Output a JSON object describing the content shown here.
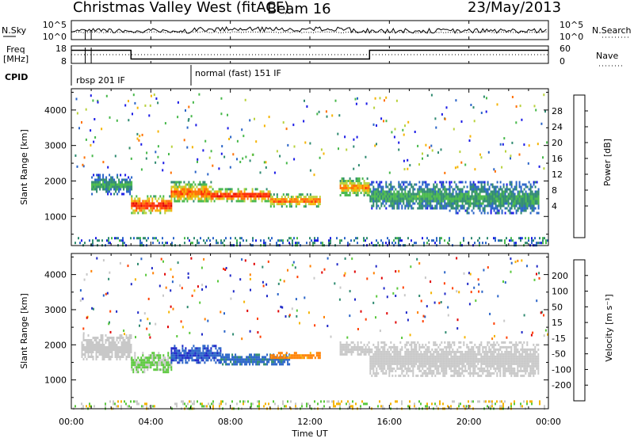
{
  "header": {
    "station": "Christmas Valley West (fitACF)",
    "beam": "Beam 16",
    "date": "23/May/2013"
  },
  "noise_panel": {
    "left_label": "N.Sky",
    "right_label": "N.Search",
    "left_ticks": [
      "10^5",
      "10^0"
    ],
    "right_ticks": [
      "10^5",
      "10^0"
    ]
  },
  "freq_panel": {
    "left_label_line1": "Freq",
    "left_label_line2": "[MHz]",
    "right_label": "Nave",
    "left_ticks": [
      "18",
      "8"
    ],
    "right_ticks": [
      "60",
      "0"
    ]
  },
  "cpid": {
    "label": "CPID",
    "modes": [
      "rbsp 201 IF",
      "normal (fast) 151 IF"
    ]
  },
  "power_panel": {
    "ylabel": "Slant Range [km]",
    "colorbar_label": "Power [dB]",
    "colorbar_ticks": [
      "28",
      "24",
      "20",
      "16",
      "12",
      "8",
      "4"
    ]
  },
  "velocity_panel": {
    "ylabel": "Slant Range [km]",
    "colorbar_label": "Velocity [m s⁻¹]",
    "colorbar_ticks": [
      "200",
      "100",
      "50",
      "15",
      "-15",
      "-50",
      "-100",
      "-200"
    ]
  },
  "xaxis": {
    "label": "Time UT",
    "ticks": [
      "00:00",
      "04:00",
      "08:00",
      "12:00",
      "16:00",
      "20:00",
      "00:00"
    ]
  },
  "chart_data": {
    "type": "heatmap",
    "title": "Christmas Valley West (fitACF) Beam 16 23/May/2013",
    "xlabel": "Time UT",
    "x_range_hours": [
      0,
      24
    ],
    "yticks_km": [
      1000,
      2000,
      3000,
      4000
    ],
    "ylim_km": [
      180,
      4600
    ],
    "panels": [
      {
        "name": "power",
        "colorbar_label": "Power [dB]",
        "scale": [
          0,
          32
        ],
        "colors": [
          "#1a1ae6",
          "#2a64c8",
          "#2f8a70",
          "#47b84a",
          "#b8d23c",
          "#f5b400",
          "#ff7000",
          "#ff2a00",
          "#e00000"
        ],
        "echo_bands": [
          {
            "t_start": 1.0,
            "t_end": 3.0,
            "range_km": [
              1650,
              2200
            ],
            "power_db": 10
          },
          {
            "t_start": 3.0,
            "t_end": 5.0,
            "range_km": [
              1100,
              1600
            ],
            "power_db": 26
          },
          {
            "t_start": 5.0,
            "t_end": 7.0,
            "range_km": [
              1400,
              2000
            ],
            "power_db": 22
          },
          {
            "t_start": 7.0,
            "t_end": 10.0,
            "range_km": [
              1450,
              1800
            ],
            "power_db": 26
          },
          {
            "t_start": 10.0,
            "t_end": 12.5,
            "range_km": [
              1300,
              1650
            ],
            "power_db": 22
          },
          {
            "t_start": 13.5,
            "t_end": 15.0,
            "range_km": [
              1600,
              2100
            ],
            "power_db": 20
          },
          {
            "t_start": 15.0,
            "t_end": 19.0,
            "range_km": [
              1200,
              2000
            ],
            "power_db": 10
          },
          {
            "t_start": 19.0,
            "t_end": 23.5,
            "range_km": [
              1100,
              2000
            ],
            "power_db": 10
          }
        ]
      },
      {
        "name": "velocity",
        "colorbar_label": "Velocity [m s⁻¹]",
        "scale": [
          -200,
          200
        ],
        "colors": [
          "#1e28c8",
          "#2a64c8",
          "#2f8a70",
          "#5ac83c",
          "#c8c8c8",
          "#f5b400",
          "#ff8000",
          "#ff4000",
          "#e00000"
        ],
        "echo_bands": [
          {
            "t_start": 0.5,
            "t_end": 3.0,
            "range_km": [
              1600,
              2300
            ],
            "velocity": 0
          },
          {
            "t_start": 3.0,
            "t_end": 5.0,
            "range_km": [
              1200,
              1800
            ],
            "velocity": -30
          },
          {
            "t_start": 5.0,
            "t_end": 7.5,
            "range_km": [
              1500,
              2000
            ],
            "velocity": -150
          },
          {
            "t_start": 7.5,
            "t_end": 11.0,
            "range_km": [
              1450,
              1750
            ],
            "velocity": -120
          },
          {
            "t_start": 10.0,
            "t_end": 12.5,
            "range_km": [
              1600,
              1800
            ],
            "velocity": 80
          },
          {
            "t_start": 13.5,
            "t_end": 15.0,
            "range_km": [
              1700,
              2100
            ],
            "velocity": 0
          },
          {
            "t_start": 15.0,
            "t_end": 23.5,
            "range_km": [
              1100,
              2100
            ],
            "velocity": 0
          }
        ]
      }
    ],
    "noise": {
      "sky_log10_range": [
        0,
        5
      ],
      "search_log10_range": [
        0,
        5
      ]
    },
    "frequency_mhz": {
      "segments": [
        {
          "t_start": 0,
          "t_end": 3.0,
          "value": 15.5
        },
        {
          "t_start": 3.0,
          "t_end": 15.0,
          "value": 10.5
        },
        {
          "t_start": 15.0,
          "t_end": 24.0,
          "value": 15.5
        }
      ]
    },
    "cpid_segments": [
      {
        "t_start": 0,
        "t_end": 6.0,
        "mode": "rbsp 201 IF"
      },
      {
        "t_start": 6.0,
        "t_end": 24.0,
        "mode": "normal (fast) 151 IF"
      }
    ]
  }
}
